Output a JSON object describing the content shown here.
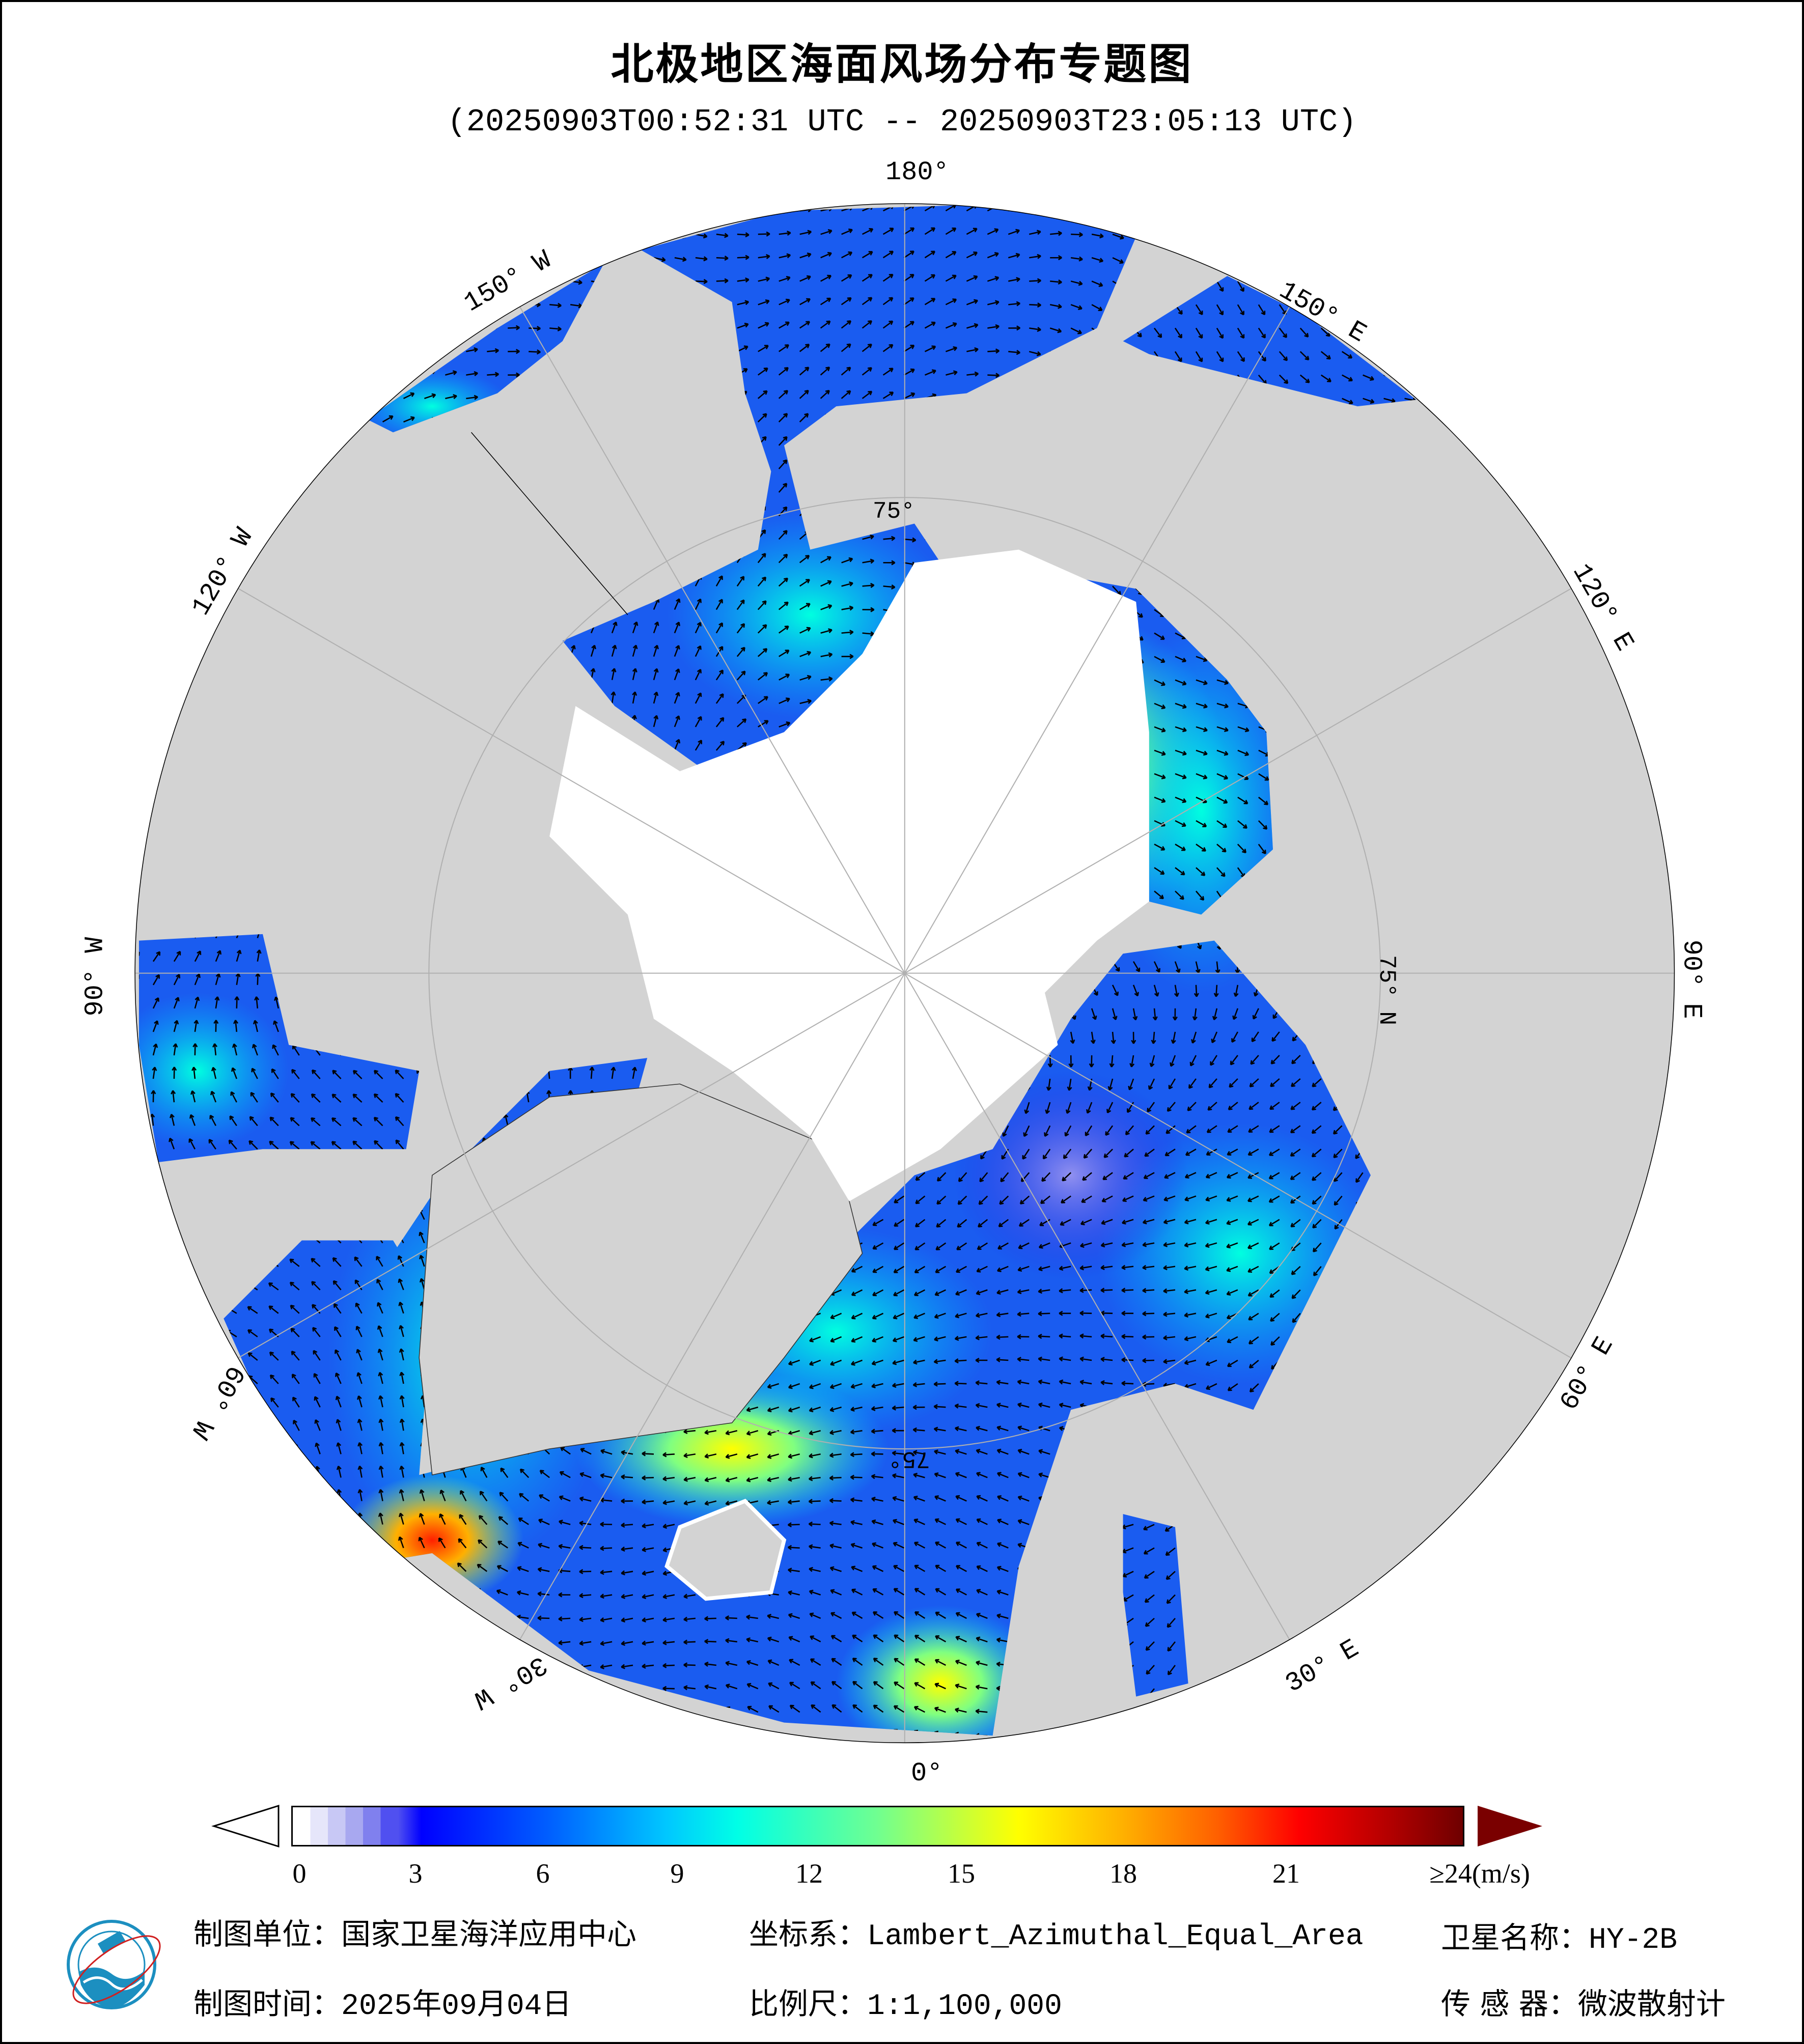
{
  "title": "北极地区海面风场分布专题图",
  "subtitle": "(20250903T00:52:31 UTC -- 20250903T23:05:13 UTC)",
  "graticule": {
    "lon_180": "180°",
    "lon_150w": "150° W",
    "lon_120w": "120° W",
    "lon_90w": "90° W",
    "lon_60w": "60° W",
    "lon_30w": "30° W",
    "lon_0": "0°",
    "lon_30e": "30° E",
    "lon_60e": "60° E",
    "lon_90e": "90° E",
    "lon_120e": "120° E",
    "lon_150e": "150° E",
    "lat_75_top": "75°",
    "lat_75_right": "75° N",
    "lat_75_bottom": "75°"
  },
  "colors": {
    "land": "#d3d3d3",
    "ice_nodata": "#ffffff",
    "ocean_base": "#1a5cf0",
    "arrow": "#000000"
  },
  "colorbar": {
    "unit": "(m/s)",
    "min": 0,
    "max": 24,
    "ticks": [
      "0",
      "3",
      "6",
      "9",
      "12",
      "15",
      "18",
      "21",
      "≥24(m/s)"
    ],
    "extend_low_color": "#ffffff",
    "extend_high_color": "#7a0000"
  },
  "footer": {
    "unit_label": "制图单位：",
    "unit_value": "国家卫星海洋应用中心",
    "time_label": "制图时间：",
    "time_value": "2025年09月04日",
    "crs_label": "坐标系：",
    "crs_value": "Lambert_Azimuthal_Equal_Area",
    "scale_label": "比例尺：",
    "scale_value": "1:1,100,000",
    "satellite_label": "卫星名称：",
    "satellite_value": "HY-2B",
    "sensor_label": "传 感 器：",
    "sensor_value": "微波散射计"
  }
}
